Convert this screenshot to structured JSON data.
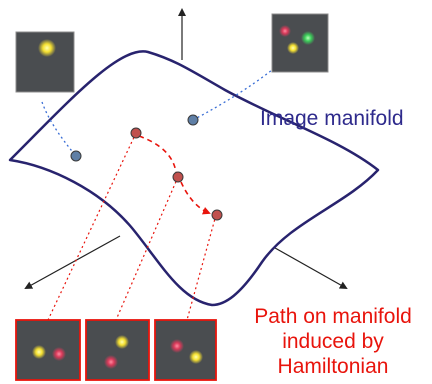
{
  "labels": {
    "image_manifold": "Image manifold",
    "path_line1": "Path on manifold",
    "path_line2": "induced by",
    "path_line3": "Hamiltonian"
  },
  "colors": {
    "manifold_outline": "#28236e",
    "axis": "#222222",
    "blue_dotted": "#3b6fd6",
    "red_path": "#e8140c",
    "point_blue": "#5f7fa6",
    "point_red": "#c0504d",
    "thumb_bg": "#4a4d50",
    "red_frame": "#e8140c"
  },
  "thumbnails": [
    {
      "id": "top-left",
      "dots": [
        "yellow"
      ]
    },
    {
      "id": "top-right",
      "dots": [
        "red",
        "green",
        "yellow"
      ]
    },
    {
      "id": "bottom-1",
      "dots": [
        "yellow",
        "red"
      ]
    },
    {
      "id": "bottom-2",
      "dots": [
        "yellow",
        "red"
      ]
    },
    {
      "id": "bottom-3",
      "dots": [
        "red",
        "yellow"
      ]
    }
  ]
}
